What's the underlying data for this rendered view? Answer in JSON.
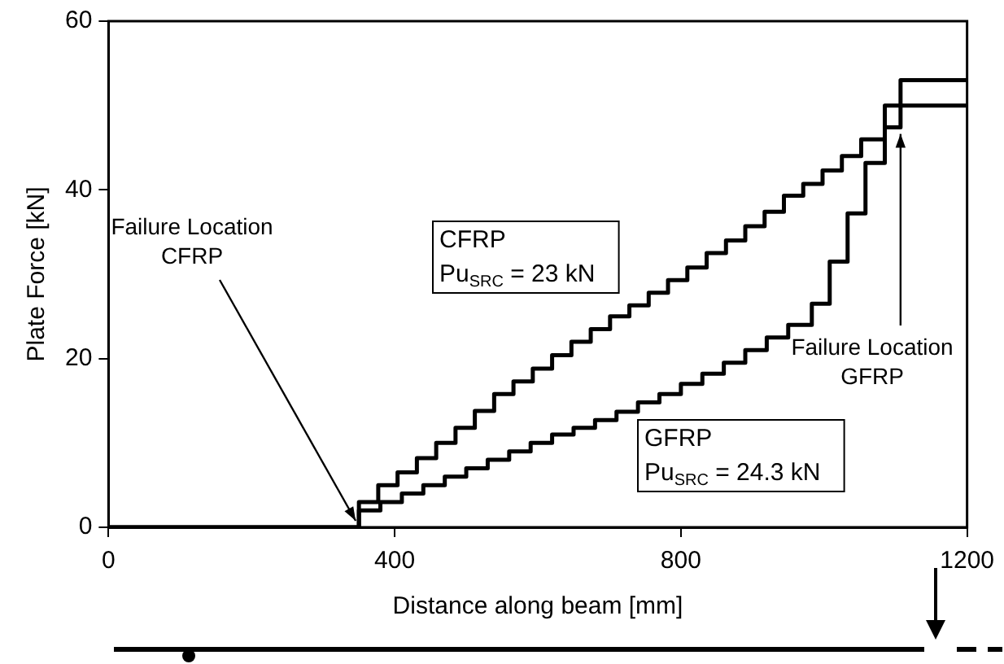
{
  "chart_data": {
    "type": "step",
    "xlabel": "Distance along beam [mm]",
    "ylabel": "Plate Force [kN]",
    "xlim": [
      0,
      1200
    ],
    "xticks": [
      0,
      400,
      800,
      1200
    ],
    "ylim": [
      0,
      60
    ],
    "yticks": [
      0,
      20,
      40,
      60
    ],
    "grid": false,
    "legend": false,
    "marker": "none",
    "line_style": "solid",
    "series": [
      {
        "color": "#000000",
        "x": [
          0,
          350,
          377,
          404,
          431,
          458,
          485,
          512,
          539,
          566,
          593,
          620,
          647,
          674,
          701,
          728,
          755,
          782,
          809,
          836,
          863,
          890,
          917,
          944,
          971,
          998,
          1025,
          1052,
          1085,
          1200
        ],
        "values": [
          0,
          3,
          5,
          6.5,
          8.2,
          10,
          11.8,
          13.8,
          15.8,
          17.3,
          18.8,
          20.4,
          22,
          23.5,
          25,
          26.3,
          27.8,
          29.3,
          30.8,
          32.5,
          34,
          35.7,
          37.4,
          39.3,
          40.7,
          42.3,
          44,
          46,
          50,
          50
        ]
      },
      {
        "color": "#000000",
        "x": [
          0,
          350,
          380,
          410,
          440,
          470,
          500,
          530,
          560,
          590,
          620,
          650,
          680,
          710,
          740,
          770,
          800,
          830,
          860,
          890,
          920,
          950,
          983,
          1008,
          1033,
          1058,
          1085,
          1107,
          1200
        ],
        "values": [
          0,
          2,
          3,
          4,
          5,
          6,
          7,
          8,
          9,
          10,
          11,
          11.8,
          12.7,
          13.7,
          14.8,
          15.8,
          17,
          18.2,
          19.5,
          21,
          22.5,
          24,
          26.5,
          31.5,
          37.2,
          43.2,
          47.4,
          53,
          53
        ]
      }
    ],
    "annotations": [
      {
        "text": "Failure Location\nCFRP",
        "x": 350,
        "y": 0
      },
      {
        "text": "Failure Location\nGFRP",
        "x": 1107,
        "y": 47.4
      },
      "CFRP\nPu$_{SRC}$ = 23 kN",
      "GFRP\nPu$_{SRC}$ = 24.3 kN"
    ]
  }
}
